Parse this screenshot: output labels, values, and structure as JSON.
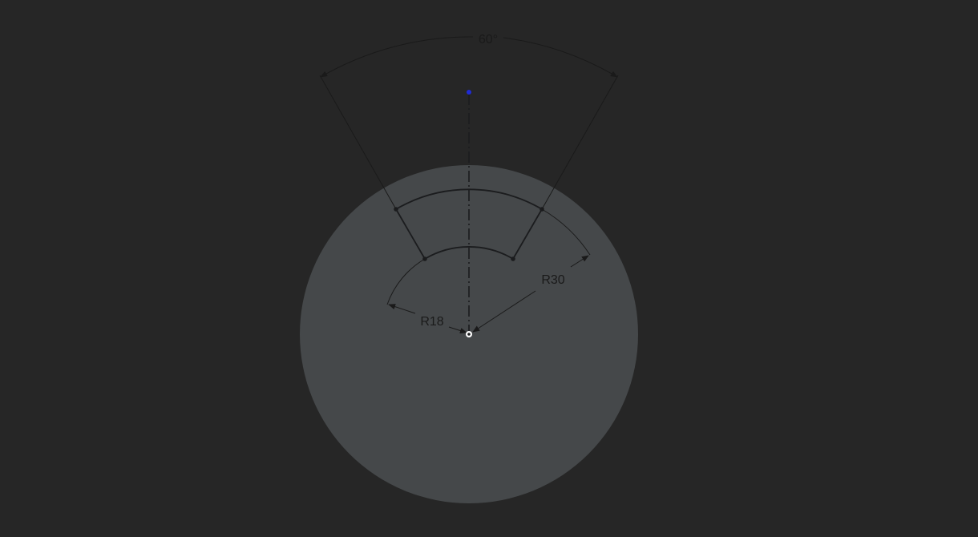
{
  "sketch": {
    "dimensions": {
      "angle_label": "60°",
      "outer_radius_label": "R30",
      "inner_radius_label": "R18"
    },
    "colors": {
      "background": "#262626",
      "disk_fill": "#45484a",
      "geometry_stroke": "#1b1c1e",
      "text": "#1a1a1a",
      "construction_point": "#1f2bd6",
      "origin_point": "#ffffff"
    },
    "icons": {
      "origin": "origin-marker-icon",
      "construction_point": "construction-point-icon"
    }
  }
}
